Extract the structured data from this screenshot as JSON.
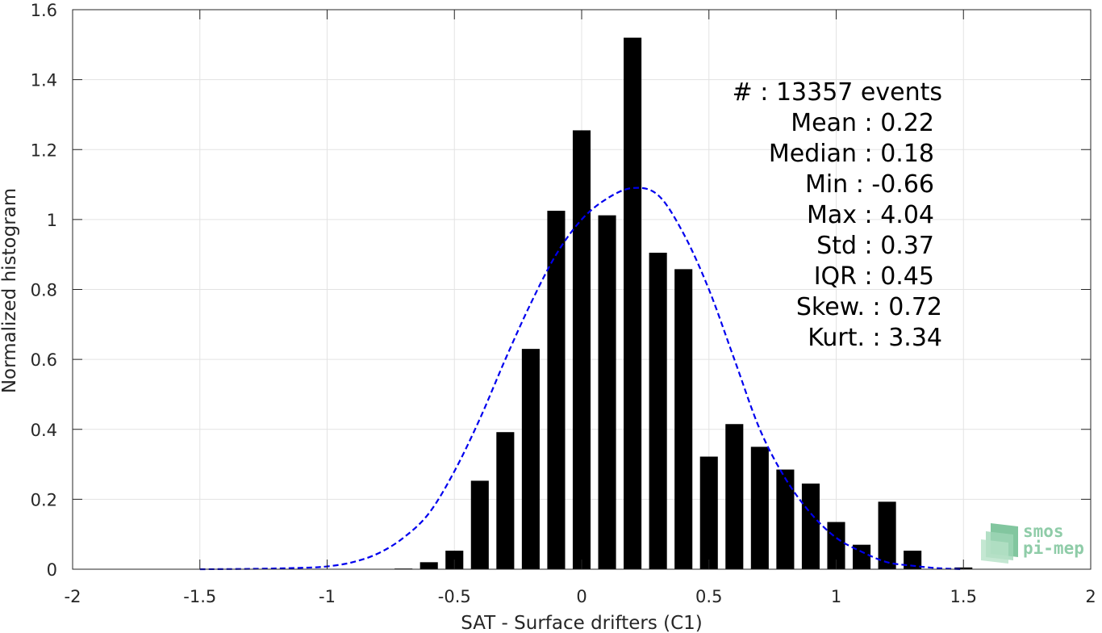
{
  "chart_data": {
    "type": "bar",
    "xlabel": "SAT - Surface drifters (C1)",
    "ylabel": "Normalized histogram",
    "xlim": [
      -2,
      2
    ],
    "ylim": [
      0,
      1.6
    ],
    "x_ticks": [
      -2,
      -1.5,
      -1,
      -0.5,
      0,
      0.5,
      1,
      1.5,
      2
    ],
    "x_tick_labels": [
      "-2",
      "-1.5",
      "-1",
      "-0.5",
      "0",
      "0.5",
      "1",
      "1.5",
      "2"
    ],
    "y_ticks": [
      0,
      0.2,
      0.4,
      0.6,
      0.8,
      1,
      1.2,
      1.4,
      1.6
    ],
    "y_tick_labels": [
      "0",
      "0.2",
      "0.4",
      "0.6",
      "0.8",
      "1",
      "1.2",
      "1.4",
      "1.6"
    ],
    "grid": true,
    "bar_color": "#000000",
    "bin_width": 0.1,
    "bar_width_fraction": 0.7,
    "bins": {
      "x": [
        -0.7,
        -0.6,
        -0.5,
        -0.4,
        -0.3,
        -0.2,
        -0.1,
        0.0,
        0.1,
        0.2,
        0.3,
        0.4,
        0.5,
        0.6,
        0.7,
        0.8,
        0.9,
        1.0,
        1.1,
        1.2,
        1.3,
        1.5
      ],
      "values": [
        0.002,
        0.02,
        0.053,
        0.253,
        0.392,
        0.63,
        1.025,
        1.255,
        1.012,
        1.52,
        0.905,
        0.858,
        0.322,
        0.415,
        0.35,
        0.285,
        0.245,
        0.135,
        0.07,
        0.193,
        0.053,
        0.005
      ]
    },
    "fit_curve": {
      "style": "dashed",
      "color": "#0000ee",
      "x": [
        -1.5,
        -1.3,
        -1.1,
        -1.0,
        -0.9,
        -0.8,
        -0.7,
        -0.6,
        -0.5,
        -0.4,
        -0.3,
        -0.2,
        -0.1,
        0.0,
        0.1,
        0.2,
        0.3,
        0.4,
        0.5,
        0.6,
        0.7,
        0.8,
        0.9,
        1.0,
        1.1,
        1.2,
        1.3,
        1.4,
        1.5
      ],
      "y": [
        0.0,
        0.001,
        0.004,
        0.008,
        0.02,
        0.045,
        0.09,
        0.16,
        0.28,
        0.43,
        0.6,
        0.76,
        0.9,
        1.0,
        1.06,
        1.09,
        1.07,
        0.96,
        0.8,
        0.6,
        0.4,
        0.26,
        0.16,
        0.09,
        0.05,
        0.02,
        0.01,
        0.003,
        0.0
      ]
    },
    "annotations": [
      "#  : 13357 events",
      "Mean : 0.22",
      "Median : 0.18",
      "Min : -0.66",
      "Max : 4.04",
      "Std : 0.37",
      "IQR : 0.45",
      "Skew. : 0.72",
      "Kurt. : 3.34"
    ]
  },
  "logo": {
    "line1": "smos",
    "line2": "pi-mep",
    "color": "#7cc49a"
  }
}
